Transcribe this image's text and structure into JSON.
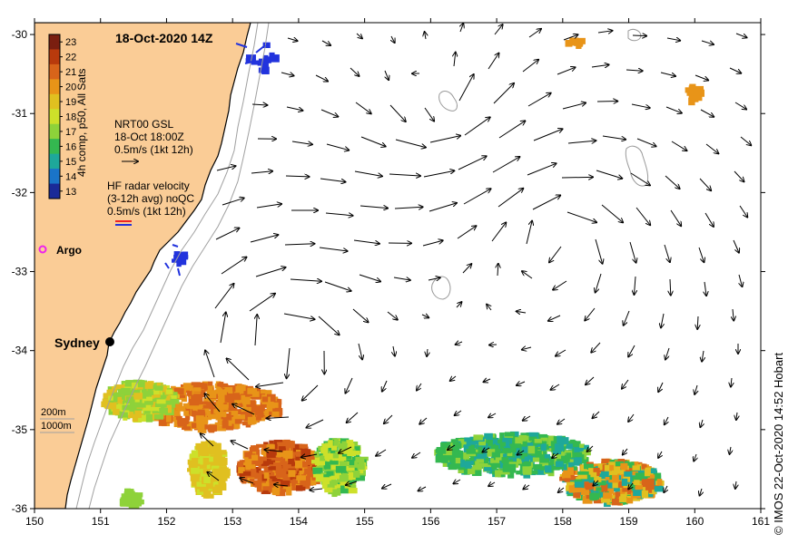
{
  "title": "18-Oct-2020 14Z",
  "colorbar": {
    "label": "4h comp, p50, All Sats",
    "ticks": [
      "23",
      "22",
      "21",
      "20",
      "19",
      "18",
      "17",
      "16",
      "15",
      "14",
      "13"
    ],
    "colors": [
      "#7a1e10",
      "#b83a0c",
      "#d8641a",
      "#e89418",
      "#e0c020",
      "#cde02a",
      "#8ed23a",
      "#34b850",
      "#1ea89a",
      "#1a74c8",
      "#1a2a98"
    ]
  },
  "gsl_legend": {
    "line1": "NRT00 GSL",
    "line2": "18-Oct 18:00Z",
    "line3": "0.5m/s (1kt 12h)"
  },
  "hf_legend": {
    "line1": "HF radar velocity",
    "line2": "(3-12h avg) noQC",
    "line3": "0.5m/s (1kt 12h)"
  },
  "argo_label": "Argo",
  "city_label": "Sydney",
  "depth_legend": {
    "line1": "200m",
    "line2": "1000m"
  },
  "credit": "© IMOS 22-Oct-2020 14:52 Hobart",
  "axes": {
    "x_ticks": [
      "150",
      "151",
      "152",
      "153",
      "154",
      "155",
      "156",
      "157",
      "158",
      "159",
      "160",
      "161"
    ],
    "y_ticks": [
      "-30",
      "-31",
      "-32",
      "-33",
      "-34",
      "-35",
      "-36"
    ],
    "lon_range": [
      150,
      161
    ],
    "lat_range": [
      -36,
      -29.85
    ]
  },
  "colors": {
    "land": "#facc96",
    "coast": "#000000",
    "isobath": "#a0a0a0",
    "hf_arrow_red": "#ee2222",
    "hf_arrow_blue": "#2233dd",
    "argo": "#ee22ee"
  }
}
